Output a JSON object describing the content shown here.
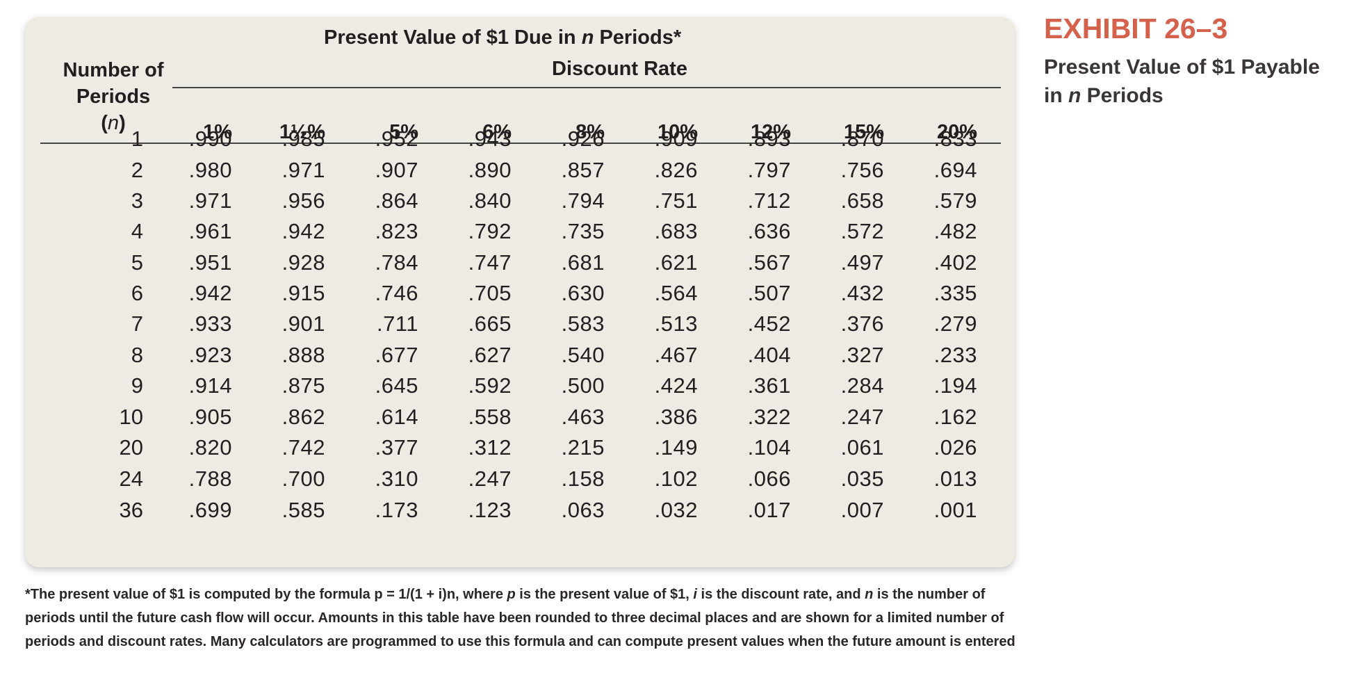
{
  "exhibit": {
    "label": "EXHIBIT 26–3",
    "caption_line1": "Present Value of $1 Payable",
    "caption_prefix": "in ",
    "caption_italic": "n",
    "caption_suffix": " Periods"
  },
  "table": {
    "title_prefix": "Present Value of $1 Due in ",
    "title_italic": "n",
    "title_suffix": " Periods*",
    "subtitle": "Discount Rate",
    "period_header_line1": "Number of",
    "period_header_line2": "Periods",
    "period_header_open": "(",
    "period_header_var": "n",
    "period_header_close": ")",
    "rates": [
      "1%",
      "1½%",
      "5%",
      "6%",
      "8%",
      "10%",
      "12%",
      "15%",
      "20%"
    ],
    "rows": [
      {
        "n": "1",
        "values": [
          ".990",
          ".985",
          ".952",
          ".943",
          ".926",
          ".909",
          ".893",
          ".870",
          ".833"
        ]
      },
      {
        "n": "2",
        "values": [
          ".980",
          ".971",
          ".907",
          ".890",
          ".857",
          ".826",
          ".797",
          ".756",
          ".694"
        ]
      },
      {
        "n": "3",
        "values": [
          ".971",
          ".956",
          ".864",
          ".840",
          ".794",
          ".751",
          ".712",
          ".658",
          ".579"
        ]
      },
      {
        "n": "4",
        "values": [
          ".961",
          ".942",
          ".823",
          ".792",
          ".735",
          ".683",
          ".636",
          ".572",
          ".482"
        ]
      },
      {
        "n": "5",
        "values": [
          ".951",
          ".928",
          ".784",
          ".747",
          ".681",
          ".621",
          ".567",
          ".497",
          ".402"
        ]
      },
      {
        "n": "6",
        "values": [
          ".942",
          ".915",
          ".746",
          ".705",
          ".630",
          ".564",
          ".507",
          ".432",
          ".335"
        ]
      },
      {
        "n": "7",
        "values": [
          ".933",
          ".901",
          ".711",
          ".665",
          ".583",
          ".513",
          ".452",
          ".376",
          ".279"
        ]
      },
      {
        "n": "8",
        "values": [
          ".923",
          ".888",
          ".677",
          ".627",
          ".540",
          ".467",
          ".404",
          ".327",
          ".233"
        ]
      },
      {
        "n": "9",
        "values": [
          ".914",
          ".875",
          ".645",
          ".592",
          ".500",
          ".424",
          ".361",
          ".284",
          ".194"
        ]
      },
      {
        "n": "10",
        "values": [
          ".905",
          ".862",
          ".614",
          ".558",
          ".463",
          ".386",
          ".322",
          ".247",
          ".162"
        ]
      },
      {
        "n": "20",
        "values": [
          ".820",
          ".742",
          ".377",
          ".312",
          ".215",
          ".149",
          ".104",
          ".061",
          ".026"
        ]
      },
      {
        "n": "24",
        "values": [
          ".788",
          ".700",
          ".310",
          ".247",
          ".158",
          ".102",
          ".066",
          ".035",
          ".013"
        ]
      },
      {
        "n": "36",
        "values": [
          ".699",
          ".585",
          ".173",
          ".123",
          ".063",
          ".032",
          ".017",
          ".007",
          ".001"
        ]
      }
    ]
  },
  "footnote": {
    "star": "*",
    "t1": "The present value of $1 is computed by the formula p = 1/(1 + i)n, where ",
    "v1": "p",
    "t2": " is the present value of $1, ",
    "v2": "i",
    "t3": " is the discount rate, and ",
    "v3": "n",
    "t4": " is the number of periods until the future cash flow will occur. Amounts in this table have been rounded to three decimal places and are shown for a limited number of periods and discount rates. Many calculators are programmed to use this formula and can compute present values when the future amount is entered"
  }
}
